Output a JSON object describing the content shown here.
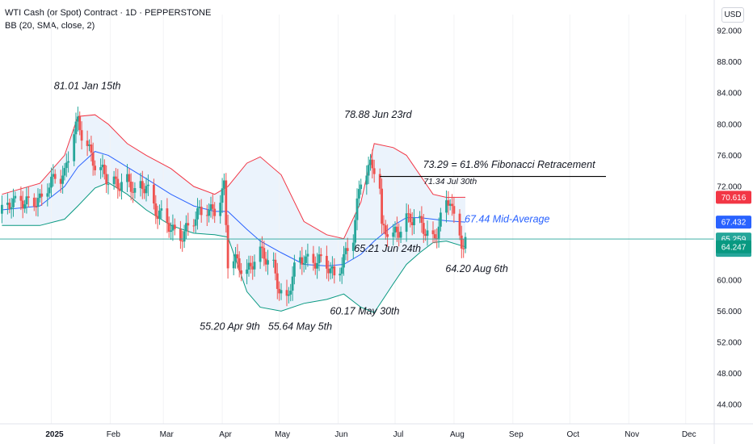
{
  "header": {
    "title": "WTI Cash (or Spot) Contract · 1D · PEPPERSTONE",
    "indicator": "BB (20, SMA, close, 2)",
    "currency": "USD"
  },
  "colors": {
    "up": "#26a69a",
    "down": "#ef5350",
    "upper_band": "#f23645",
    "lower_band": "#089981",
    "basis": "#2962ff",
    "band_fill": "#e8f1fb",
    "price_line": "#26a69a"
  },
  "chart_data": {
    "type": "candlestick",
    "ylim": [
      43,
      94
    ],
    "y_ticks": [
      "92.000",
      "88.000",
      "84.000",
      "80.000",
      "76.000",
      "72.000",
      "60.000",
      "56.000",
      "52.000",
      "48.000",
      "44.000"
    ],
    "x_ticks": [
      "2025",
      "Feb",
      "Mar",
      "Apr",
      "May",
      "Jun",
      "Jul",
      "Aug",
      "Sep",
      "Oct",
      "Nov",
      "Dec"
    ],
    "x_tick_dates": [
      "2025-01-01",
      "2025-02-01",
      "2025-03-01",
      "2025-04-01",
      "2025-05-01",
      "2025-06-01",
      "2025-07-01",
      "2025-08-01",
      "2025-09-01",
      "2025-10-01",
      "2025-11-01",
      "2025-12-01"
    ],
    "x_start": "2024-12-05",
    "x_end": "2025-12-16",
    "price_series": [
      [
        "2024-12-06",
        68.5
      ],
      [
        "2024-12-16",
        70.6
      ],
      [
        "2024-12-26",
        69.7
      ],
      [
        "2025-01-03",
        73.9
      ],
      [
        "2025-01-08",
        73.4
      ],
      [
        "2025-01-13",
        78.8
      ],
      [
        "2025-01-15",
        80.0
      ],
      [
        "2025-01-20",
        77.8
      ],
      [
        "2025-01-24",
        74.7
      ],
      [
        "2025-01-31",
        72.5
      ],
      [
        "2025-02-04",
        72.7
      ],
      [
        "2025-02-10",
        72.8
      ],
      [
        "2025-02-14",
        70.7
      ],
      [
        "2025-02-20",
        72.5
      ],
      [
        "2025-02-26",
        68.6
      ],
      [
        "2025-03-05",
        66.3
      ],
      [
        "2025-03-10",
        66.0
      ],
      [
        "2025-03-17",
        67.6
      ],
      [
        "2025-03-24",
        69.1
      ],
      [
        "2025-03-28",
        69.4
      ],
      [
        "2025-04-02",
        71.7
      ],
      [
        "2025-04-04",
        61.9
      ],
      [
        "2025-04-09",
        62.3
      ],
      [
        "2025-04-14",
        61.5
      ],
      [
        "2025-04-21",
        63.1
      ],
      [
        "2025-04-28",
        62.0
      ],
      [
        "2025-05-02",
        58.3
      ],
      [
        "2025-05-05",
        57.1
      ],
      [
        "2025-05-09",
        61.0
      ],
      [
        "2025-05-14",
        63.2
      ],
      [
        "2025-05-20",
        62.5
      ],
      [
        "2025-05-26",
        61.5
      ],
      [
        "2025-05-30",
        60.8
      ],
      [
        "2025-06-04",
        63.0
      ],
      [
        "2025-06-09",
        65.3
      ],
      [
        "2025-06-13",
        72.9
      ],
      [
        "2025-06-18",
        75.1
      ],
      [
        "2025-06-20",
        74.8
      ],
      [
        "2025-06-23",
        72.0
      ],
      [
        "2025-06-24",
        66.2
      ],
      [
        "2025-06-30",
        65.5
      ],
      [
        "2025-07-07",
        68.3
      ],
      [
        "2025-07-14",
        66.8
      ],
      [
        "2025-07-21",
        65.5
      ],
      [
        "2025-07-28",
        69.5
      ],
      [
        "2025-07-30",
        70.0
      ],
      [
        "2025-08-01",
        67.4
      ],
      [
        "2025-08-05",
        65.2
      ],
      [
        "2025-08-06",
        64.8
      ],
      [
        "2025-08-07",
        65.259
      ]
    ],
    "candle_range": [
      4.6,
      1.8
    ],
    "upper_band": [
      [
        "2024-12-06",
        71.0
      ],
      [
        "2024-12-26",
        72.4
      ],
      [
        "2025-01-08",
        76.0
      ],
      [
        "2025-01-15",
        81.0
      ],
      [
        "2025-01-24",
        81.2
      ],
      [
        "2025-01-31",
        80.0
      ],
      [
        "2025-02-10",
        77.5
      ],
      [
        "2025-02-20",
        76.0
      ],
      [
        "2025-03-05",
        74.3
      ],
      [
        "2025-03-17",
        72.0
      ],
      [
        "2025-03-28",
        71.0
      ],
      [
        "2025-04-04",
        72.0
      ],
      [
        "2025-04-14",
        75.0
      ],
      [
        "2025-04-21",
        75.8
      ],
      [
        "2025-05-02",
        73.5
      ],
      [
        "2025-05-14",
        67.5
      ],
      [
        "2025-05-26",
        65.8
      ],
      [
        "2025-06-04",
        65.3
      ],
      [
        "2025-06-13",
        70.0
      ],
      [
        "2025-06-20",
        77.5
      ],
      [
        "2025-06-30",
        77.0
      ],
      [
        "2025-07-07",
        76.0
      ],
      [
        "2025-07-14",
        73.5
      ],
      [
        "2025-07-21",
        71.0
      ],
      [
        "2025-07-28",
        70.6
      ],
      [
        "2025-08-07",
        70.616
      ]
    ],
    "basis": [
      [
        "2024-12-06",
        69.0
      ],
      [
        "2024-12-26",
        69.5
      ],
      [
        "2025-01-08",
        72.0
      ],
      [
        "2025-01-15",
        74.5
      ],
      [
        "2025-01-24",
        76.5
      ],
      [
        "2025-01-31",
        76.0
      ],
      [
        "2025-02-10",
        74.5
      ],
      [
        "2025-02-20",
        73.0
      ],
      [
        "2025-03-05",
        71.0
      ],
      [
        "2025-03-17",
        69.5
      ],
      [
        "2025-03-28",
        68.8
      ],
      [
        "2025-04-04",
        68.8
      ],
      [
        "2025-04-14",
        66.5
      ],
      [
        "2025-04-21",
        65.0
      ],
      [
        "2025-05-02",
        63.5
      ],
      [
        "2025-05-14",
        62.0
      ],
      [
        "2025-05-26",
        61.8
      ],
      [
        "2025-06-04",
        62.0
      ],
      [
        "2025-06-13",
        63.3
      ],
      [
        "2025-06-20",
        65.0
      ],
      [
        "2025-06-30",
        67.0
      ],
      [
        "2025-07-07",
        68.0
      ],
      [
        "2025-07-14",
        68.0
      ],
      [
        "2025-07-21",
        67.8
      ],
      [
        "2025-07-28",
        67.6
      ],
      [
        "2025-08-07",
        67.432
      ]
    ],
    "lower_band": [
      [
        "2024-12-06",
        67.0
      ],
      [
        "2024-12-26",
        67.0
      ],
      [
        "2025-01-08",
        67.8
      ],
      [
        "2025-01-15",
        69.5
      ],
      [
        "2025-01-24",
        71.8
      ],
      [
        "2025-01-31",
        72.5
      ],
      [
        "2025-02-10",
        71.0
      ],
      [
        "2025-02-20",
        69.0
      ],
      [
        "2025-03-05",
        67.0
      ],
      [
        "2025-03-17",
        66.0
      ],
      [
        "2025-03-28",
        65.8
      ],
      [
        "2025-04-04",
        65.5
      ],
      [
        "2025-04-14",
        58.5
      ],
      [
        "2025-04-21",
        56.5
      ],
      [
        "2025-05-02",
        56.0
      ],
      [
        "2025-05-14",
        57.0
      ],
      [
        "2025-05-26",
        57.5
      ],
      [
        "2025-06-04",
        58.2
      ],
      [
        "2025-06-13",
        56.5
      ],
      [
        "2025-06-20",
        55.8
      ],
      [
        "2025-06-30",
        59.5
      ],
      [
        "2025-07-07",
        62.0
      ],
      [
        "2025-07-14",
        63.5
      ],
      [
        "2025-07-21",
        64.8
      ],
      [
        "2025-07-28",
        65.0
      ],
      [
        "2025-08-07",
        64.247
      ]
    ],
    "horizontal_lines": [
      {
        "name": "fib-618-line",
        "value": 73.29,
        "from": "2025-06-23",
        "to": "2025-10-20",
        "color": "#000000"
      },
      {
        "name": "last-price-line",
        "value": 65.259,
        "from": "2024-12-05",
        "to": "2025-12-16",
        "color": "#26a69a"
      }
    ],
    "annotations": [
      {
        "text": "81.01 Jan 15th",
        "date": "2025-01-20",
        "value": 84.5
      },
      {
        "text": "78.88 Jun 23rd",
        "date": "2025-06-22",
        "value": 80.8
      },
      {
        "text": "73.29 = 61.8% Fibonacci Retracement",
        "date": "2025-08-30",
        "value": 74.4
      },
      {
        "text": "71.34 Jul 30th",
        "date": "2025-07-30",
        "value": 72.3,
        "size": "small"
      },
      {
        "text": "67.44 Mid-Average",
        "date": "2025-08-29",
        "value": 67.4,
        "color": "blue"
      },
      {
        "text": "65.21 Jun 24th",
        "date": "2025-06-27",
        "value": 63.6
      },
      {
        "text": "64.20 Aug 6th",
        "date": "2025-08-13",
        "value": 61.0
      },
      {
        "text": "55.20 Apr 9th",
        "date": "2025-04-05",
        "value": 53.6
      },
      {
        "text": "55.64 May 5th",
        "date": "2025-05-12",
        "value": 53.6
      },
      {
        "text": "60.17 May 30th",
        "date": "2025-06-15",
        "value": 55.6
      }
    ],
    "price_badges": [
      {
        "lines": [
          "70.616"
        ],
        "value": 70.616,
        "color": "#f23645"
      },
      {
        "lines": [
          "67.432"
        ],
        "value": 67.432,
        "color": "#2962ff"
      },
      {
        "lines": [
          "65.259",
          "14:03:10"
        ],
        "value": 65.259,
        "color": "#26a69a"
      },
      {
        "lines": [
          "64.247"
        ],
        "value": 64.247,
        "color": "#089981"
      }
    ]
  }
}
